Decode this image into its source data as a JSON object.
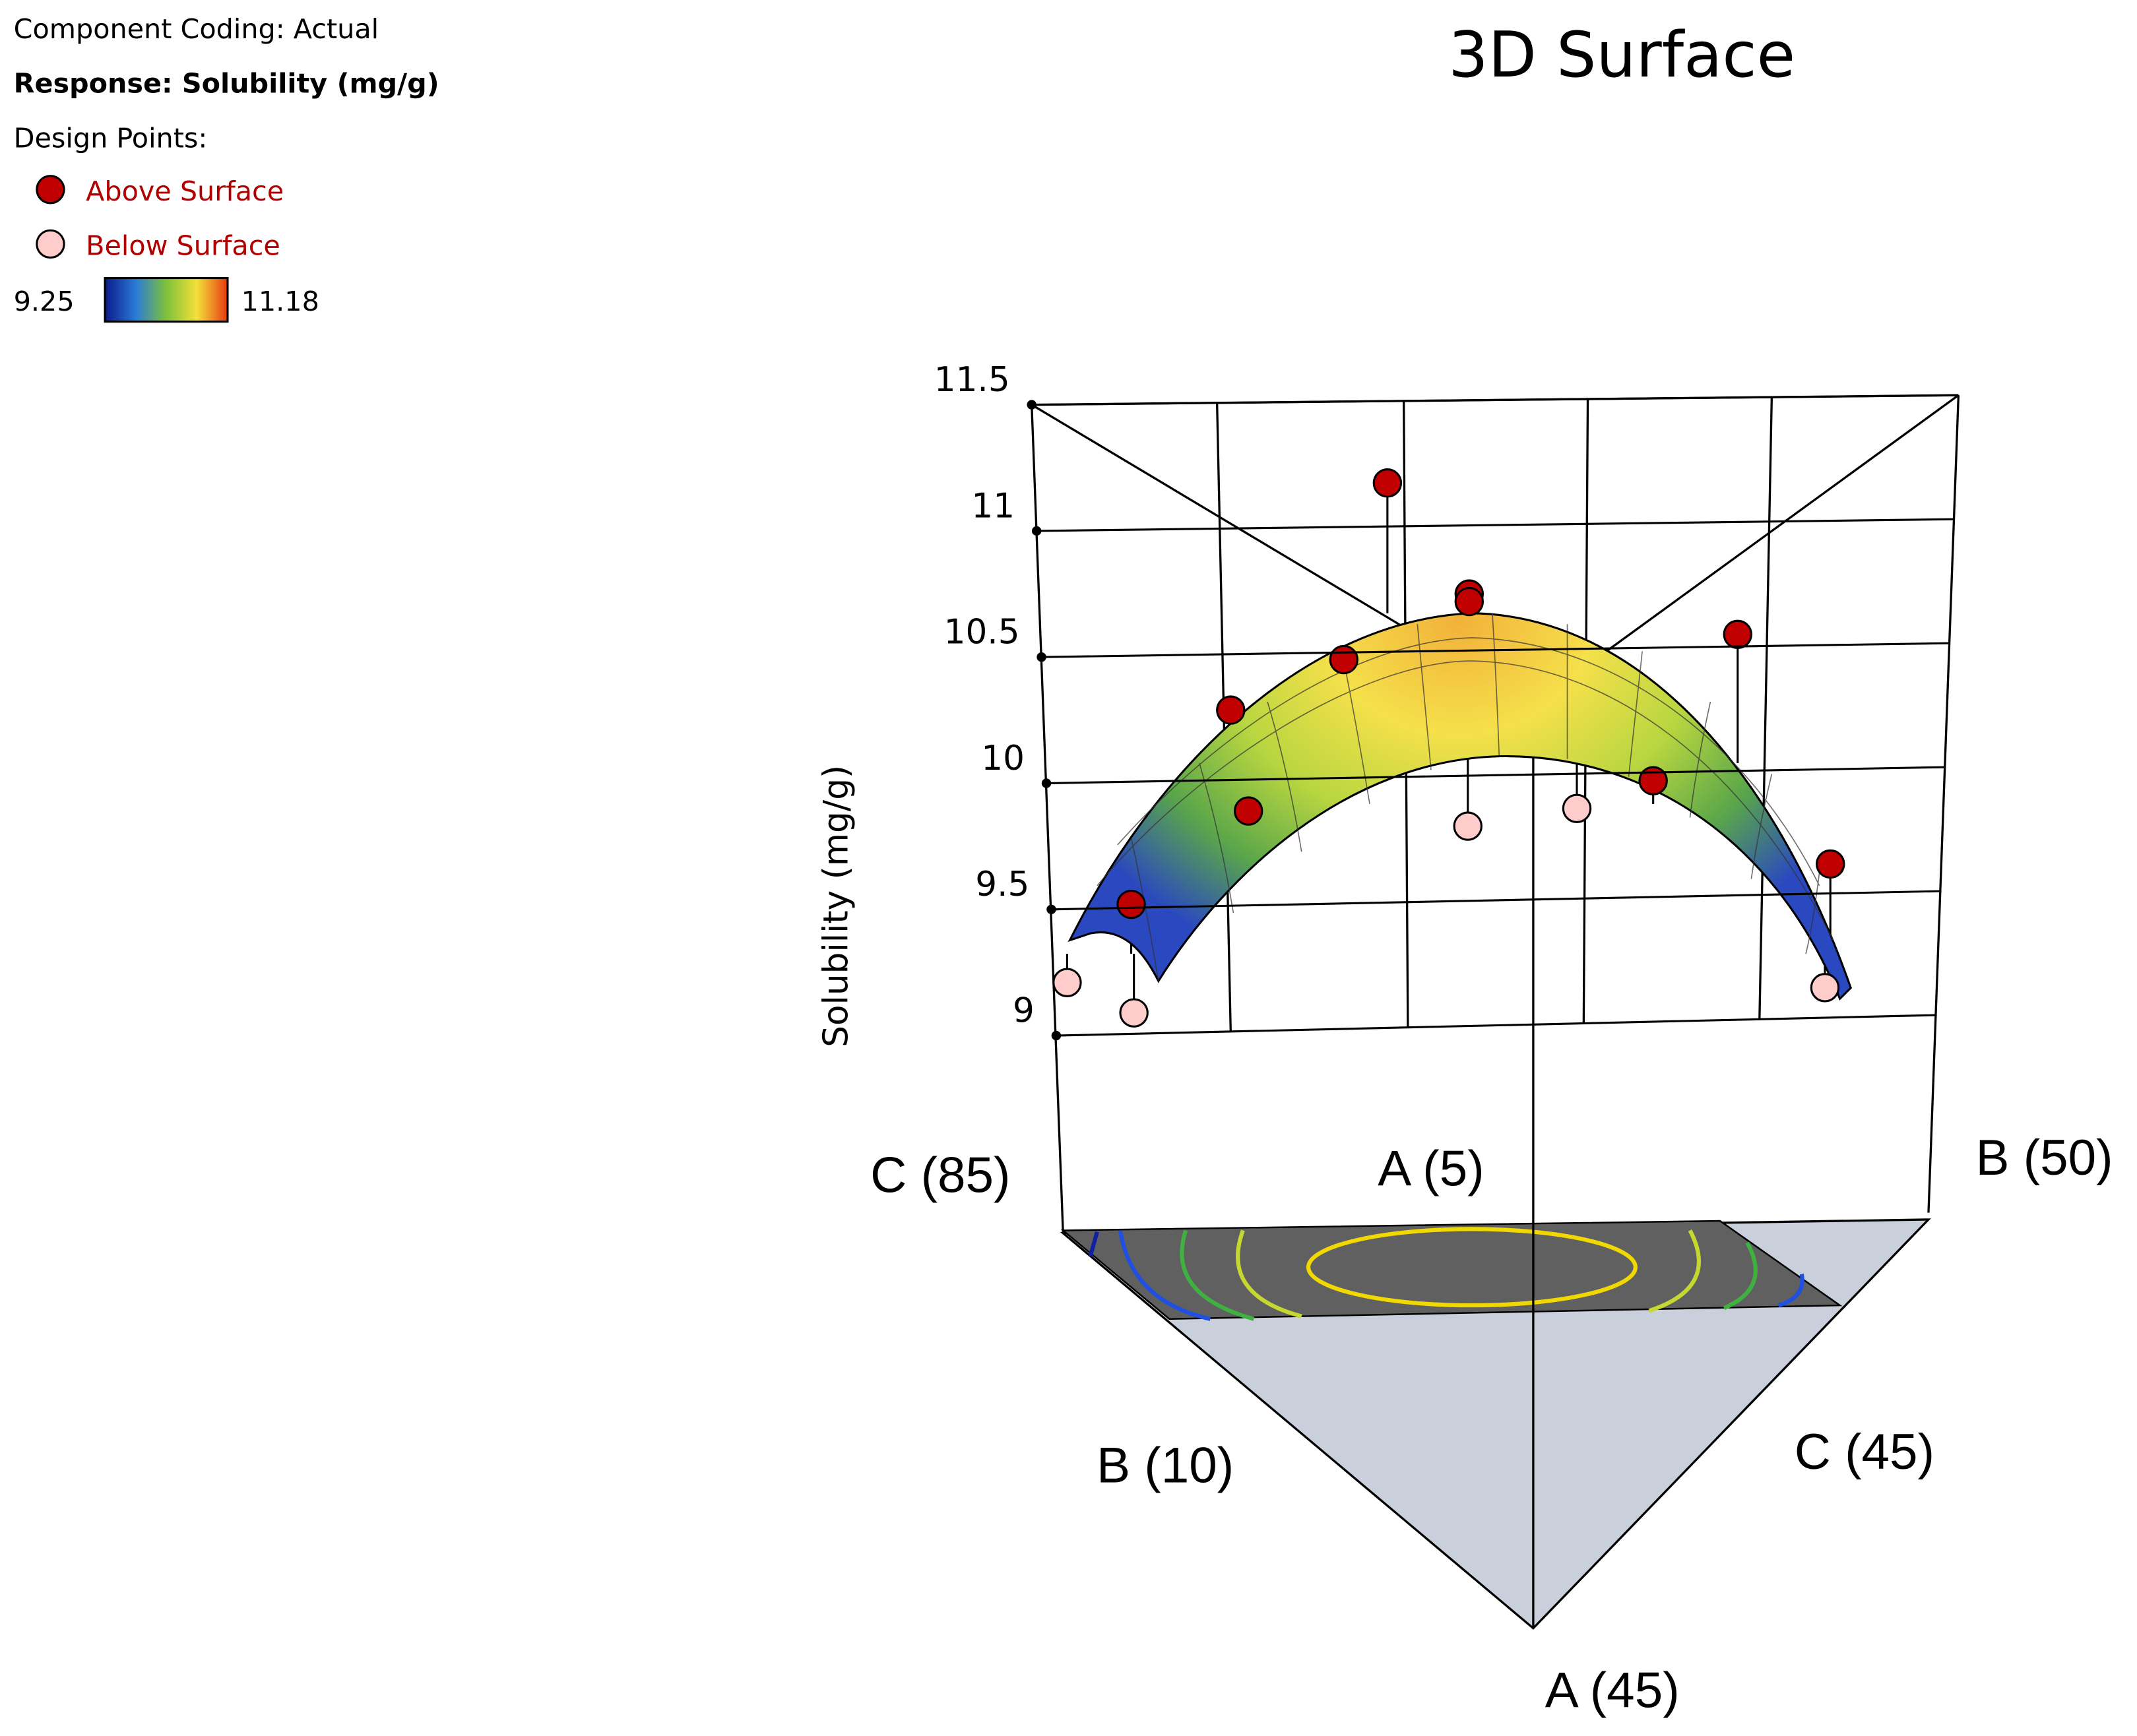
{
  "chart_data": {
    "type": "surface3d",
    "title": "3D Surface",
    "component_coding": "Component Coding: Actual",
    "response": "Response: Solubility (mg/g)",
    "design_points_label": "Design Points:",
    "ylabel": "Solubility (mg/g)",
    "ylim": [
      9,
      11.5
    ],
    "yticks": [
      9,
      9.5,
      10,
      10.5,
      11,
      11.5
    ],
    "colorbar": {
      "range": [
        9.25,
        11.18
      ]
    },
    "vertex_labels": [
      "C (85)",
      "A (5)",
      "B (50)",
      "B (10)",
      "C (45)",
      "A (45)"
    ],
    "series": [
      {
        "name": "Above Surface",
        "color": "#c00000",
        "values": [
          11.19,
          10.75,
          10.72,
          10.59,
          10.49,
          10.29,
          9.89,
          10.01,
          9.68,
          9.52
        ]
      },
      {
        "name": "Below Surface",
        "color": "#ffcccc",
        "values": [
          9.21,
          9.09,
          9.83,
          9.9,
          9.19
        ]
      }
    ]
  }
}
